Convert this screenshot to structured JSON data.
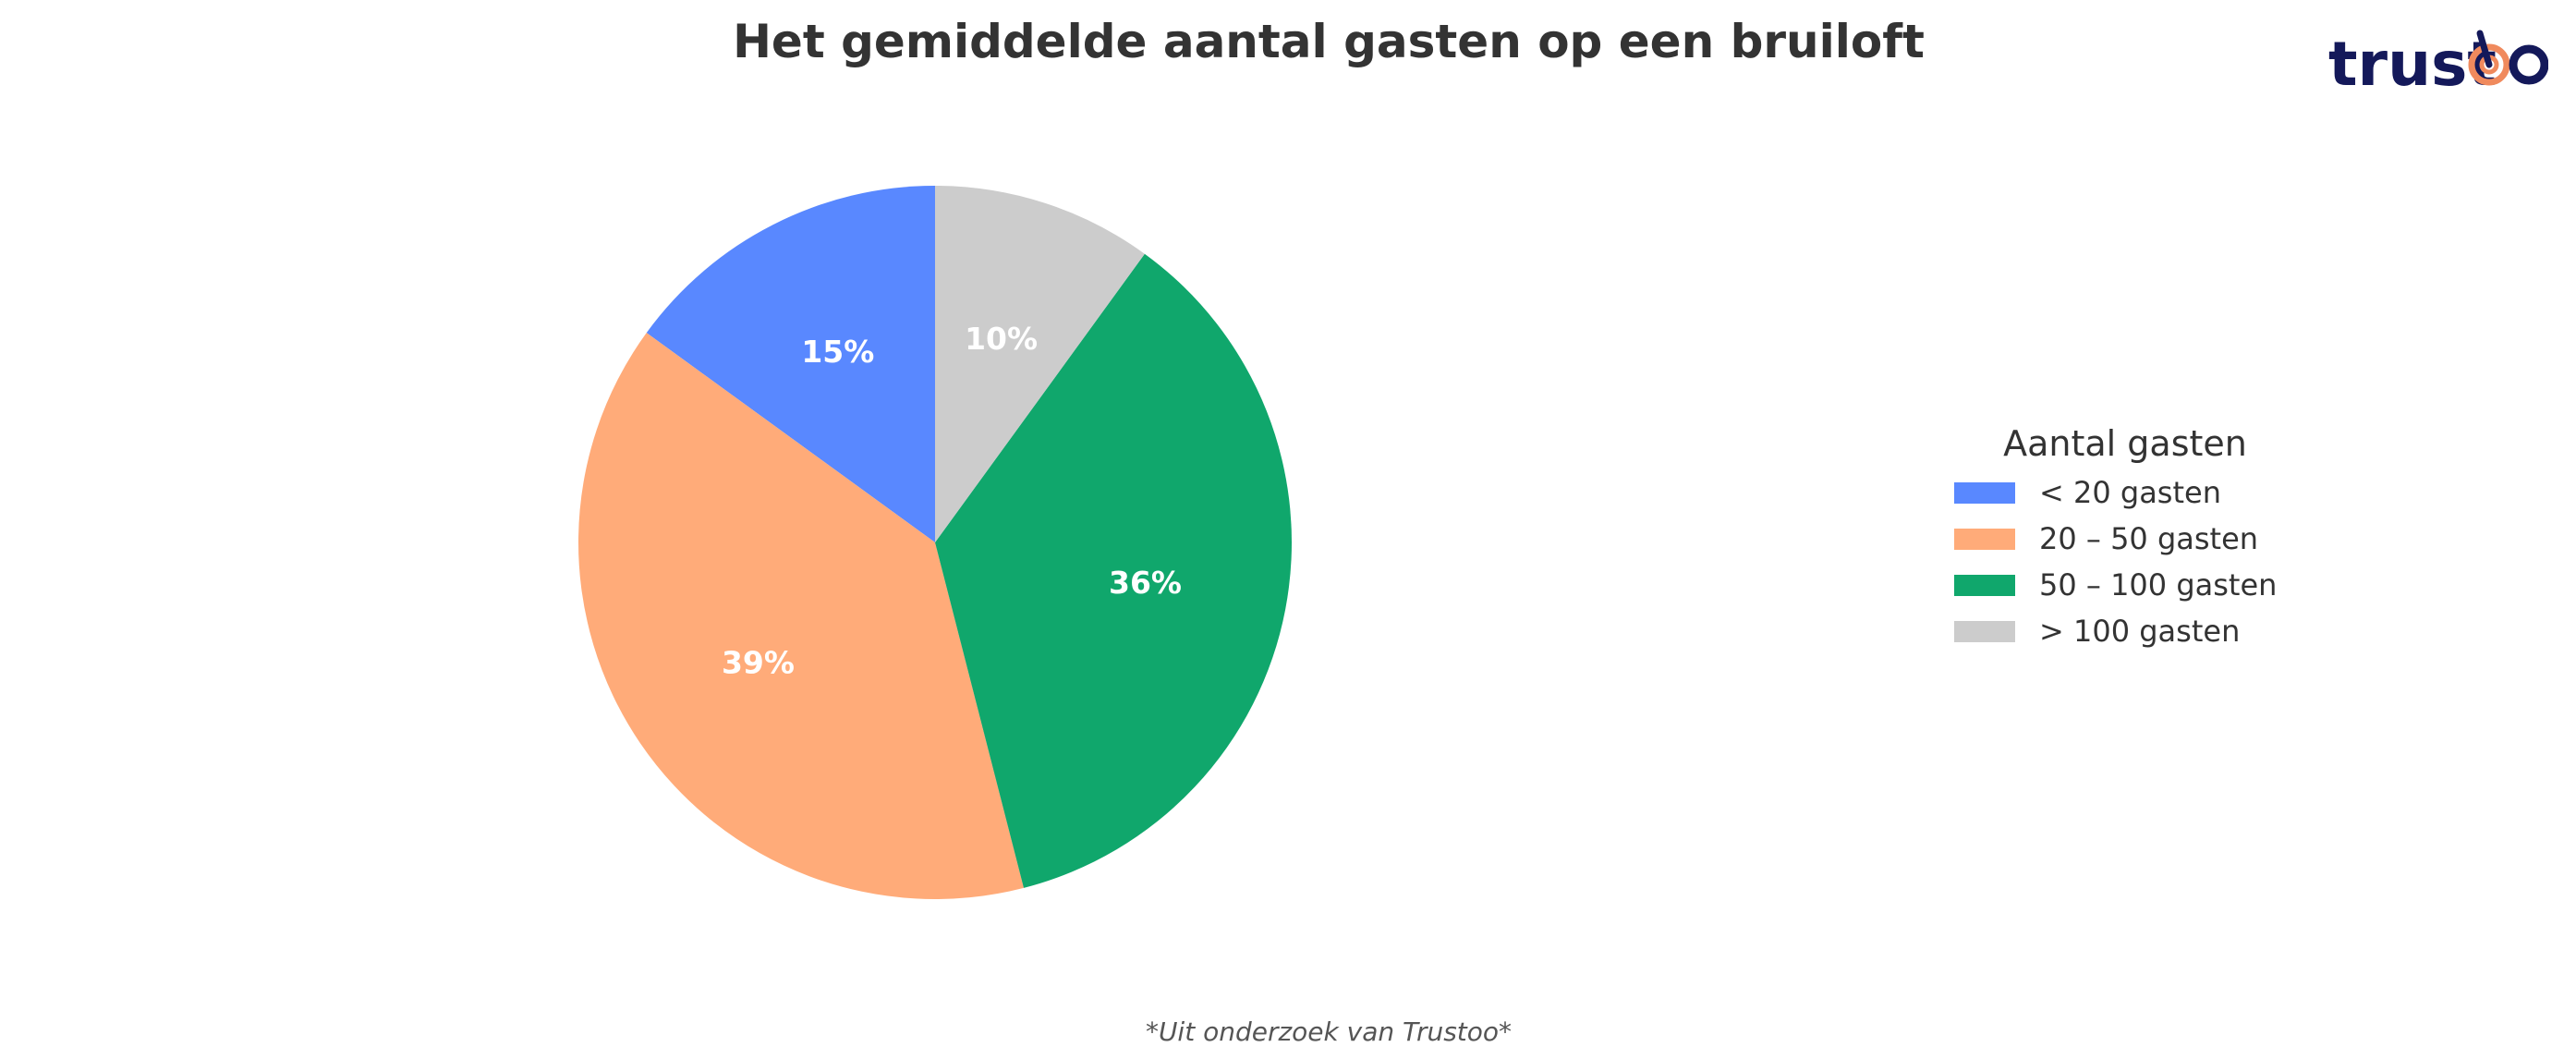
{
  "logo": {
    "text": "trustoo",
    "primary_color": "#14195a",
    "accent_color": "#f08a5d"
  },
  "chart_data": {
    "type": "pie",
    "title": "Het gemiddelde aantal gasten op een bruiloft",
    "legend_title": "Aantal gasten",
    "legend_position": "right",
    "start": "top, counter-clockwise",
    "slices": [
      {
        "label": "< 20 gasten",
        "value": 15,
        "display": "15%",
        "color": "#5988ff"
      },
      {
        "label": "20 – 50 gasten",
        "value": 39,
        "display": "39%",
        "color": "#ffab79"
      },
      {
        "label": "50 – 100 gasten",
        "value": 36,
        "display": "36%",
        "color": "#10a76c"
      },
      {
        "label": "> 100 gasten",
        "value": 10,
        "display": "10%",
        "color": "#cccccc"
      }
    ],
    "footnote": "*Uit onderzoek van Trustoo*"
  }
}
